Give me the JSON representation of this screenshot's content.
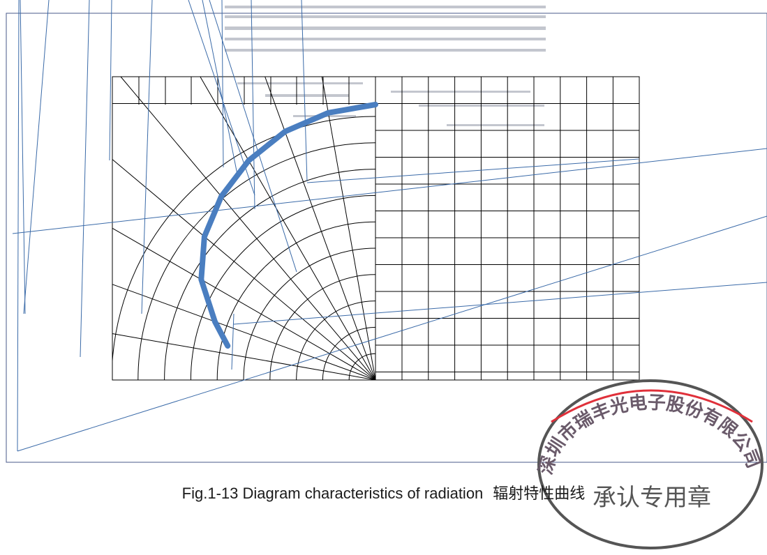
{
  "caption": {
    "english": "Fig.1-13 Diagram characteristics of radiation",
    "chinese": "辐射特性曲线"
  },
  "stamp": {
    "company": "深圳市瑞丰光电子股份有限公司",
    "purpose": "承认专用章",
    "ring_color": "#555555",
    "accent_color": "#e0303a"
  },
  "chart_data": {
    "type": "line",
    "subtype": "polar-radiation-quarter",
    "angle_range_deg": [
      0,
      90
    ],
    "radius_range": [
      0,
      1
    ],
    "grid": true,
    "series": [
      {
        "color": "#4a7ec0",
        "points": [
          {
            "angle": 0,
            "r": 1.0
          },
          {
            "angle": 10,
            "r": 0.985
          },
          {
            "angle": 20,
            "r": 0.96
          },
          {
            "angle": 30,
            "r": 0.92
          },
          {
            "angle": 40,
            "r": 0.87
          },
          {
            "angle": 50,
            "r": 0.81
          },
          {
            "angle": 60,
            "r": 0.73
          },
          {
            "angle": 70,
            "r": 0.62
          },
          {
            "angle": 77,
            "r": 0.55
          }
        ]
      }
    ]
  }
}
